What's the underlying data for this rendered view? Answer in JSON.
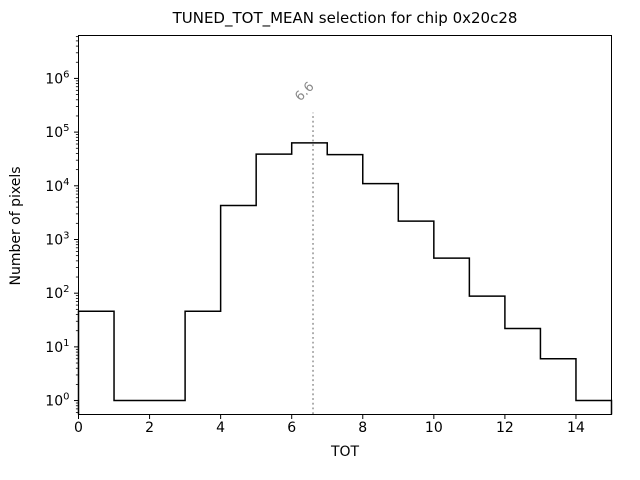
{
  "figure_title": "TUNED_TOT_MEAN selection for chip 0x20c28",
  "chart_data": {
    "type": "bar",
    "subtype": "step-histogram",
    "title": "TUNED_TOT_MEAN selection for chip 0x20c28",
    "xlabel": "TOT",
    "ylabel": "Number of pixels",
    "bin_edges": [
      0,
      1,
      2,
      3,
      4,
      5,
      6,
      7,
      8,
      9,
      10,
      11,
      12,
      13,
      14,
      15
    ],
    "counts": [
      46,
      1,
      1,
      46,
      4300,
      39000,
      63000,
      38000,
      11000,
      2200,
      450,
      88,
      22,
      6,
      1
    ],
    "xlim": [
      0,
      15
    ],
    "ylim": [
      0.55,
      6300000
    ],
    "yscale": "log",
    "grid": false,
    "legend": null,
    "xticks": [
      0,
      2,
      4,
      6,
      8,
      10,
      12,
      14
    ],
    "ytick_exponents": [
      0,
      1,
      2,
      3,
      4,
      5,
      6
    ],
    "line_color": "#000000",
    "annotation": {
      "x": 6.6,
      "label": "6.6",
      "label_rotation_deg": 45,
      "line_style": "dotted",
      "line_top_value": 230000,
      "line_color": "#999999",
      "text_color": "#8a8a8a"
    }
  }
}
